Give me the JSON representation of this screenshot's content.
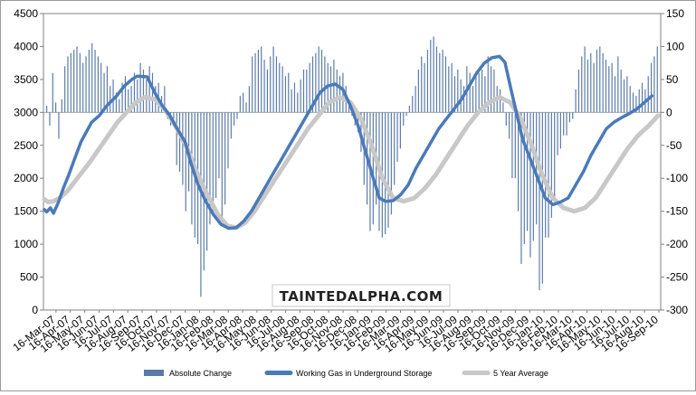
{
  "chart_data": {
    "type": "bar+line",
    "title": "",
    "xlabel": "",
    "ylabel": "",
    "y_left": {
      "min": 0,
      "max": 4500,
      "step": 500
    },
    "y_right": {
      "min": -300,
      "max": 150,
      "step": 50
    },
    "grid": false,
    "legend_position": "bottom",
    "x_tick_labels": [
      "16-Mar-07",
      "16-Apr-07",
      "16-May-07",
      "16-Jun-07",
      "16-Jul-07",
      "16-Aug-07",
      "16-Sep-07",
      "16-Oct-07",
      "16-Nov-07",
      "16-Dec-07",
      "16-Jan-08",
      "16-Feb-08",
      "16-Mar-08",
      "16-Apr-08",
      "16-May-08",
      "16-Jun-08",
      "16-Jul-08",
      "16-Aug-08",
      "16-Sep-08",
      "16-Oct-08",
      "16-Nov-08",
      "16-Dec-08",
      "16-Jan-09",
      "16-Feb-09",
      "16-Mar-09",
      "16-Apr-09",
      "16-May-09",
      "16-Jun-09",
      "16-Jul-09",
      "16-Aug-09",
      "16-Sep-09",
      "16-Oct-09",
      "16-Nov-09",
      "16-Dec-09",
      "16-Jan-10",
      "16-Feb-10",
      "16-Mar-10",
      "16-Apr-10",
      "16-May-10",
      "16-Jun-10",
      "16-Jul-10",
      "16-Aug-10",
      "16-Sep-10"
    ],
    "series": [
      {
        "name": "Absolute Change",
        "type": "bar",
        "axis": "right",
        "color": "#5a7aa8",
        "values": [
          10,
          -20,
          60,
          15,
          -40,
          20,
          70,
          85,
          90,
          95,
          100,
          90,
          75,
          85,
          95,
          105,
          95,
          85,
          75,
          60,
          70,
          40,
          50,
          30,
          20,
          45,
          55,
          35,
          40,
          60,
          50,
          75,
          65,
          50,
          70,
          60,
          40,
          45,
          25,
          40,
          -10,
          -20,
          -10,
          -80,
          -90,
          -110,
          -150,
          -120,
          -170,
          -190,
          -200,
          -280,
          -240,
          -210,
          -170,
          -150,
          -130,
          -100,
          -160,
          -140,
          -85,
          -40,
          -20,
          -10,
          25,
          30,
          15,
          40,
          85,
          90,
          95,
          100,
          80,
          65,
          85,
          100,
          85,
          75,
          70,
          55,
          60,
          35,
          45,
          30,
          50,
          65,
          65,
          75,
          85,
          90,
          100,
          95,
          85,
          75,
          70,
          80,
          65,
          55,
          60,
          40,
          20,
          -5,
          -20,
          -30,
          -60,
          -110,
          -140,
          -180,
          -170,
          -140,
          -180,
          -190,
          -185,
          -175,
          -155,
          -110,
          -75,
          -55,
          -20,
          -5,
          10,
          25,
          40,
          65,
          85,
          75,
          95,
          110,
          115,
          100,
          90,
          95,
          85,
          70,
          75,
          55,
          65,
          50,
          40,
          70,
          60,
          40,
          55,
          60,
          65,
          55,
          85,
          70,
          65,
          40,
          35,
          15,
          -20,
          -40,
          -100,
          -100,
          -150,
          -230,
          -200,
          -180,
          -220,
          -195,
          -170,
          -270,
          -260,
          -190,
          -190,
          -160,
          -130,
          -65,
          -55,
          -35,
          -35,
          -15,
          -10,
          35,
          65,
          85,
          100,
          80,
          90,
          75,
          95,
          100,
          90,
          80,
          70,
          75,
          55,
          85,
          65,
          50,
          55,
          40,
          30,
          25,
          35,
          45,
          35,
          55,
          75,
          85,
          100
        ]
      },
      {
        "name": "Working Gas in Underground Storage",
        "type": "line",
        "axis": "left",
        "color": "#4a7ab8",
        "values": [
          [
            0,
            1525
          ],
          [
            3,
            1490
          ],
          [
            8,
            1550
          ],
          [
            12,
            1470
          ],
          [
            18,
            1620
          ],
          [
            25,
            1850
          ],
          [
            32,
            2050
          ],
          [
            40,
            2300
          ],
          [
            48,
            2550
          ],
          [
            55,
            2700
          ],
          [
            62,
            2850
          ],
          [
            72,
            2950
          ],
          [
            82,
            3100
          ],
          [
            95,
            3250
          ],
          [
            105,
            3400
          ],
          [
            115,
            3500
          ],
          [
            122,
            3550
          ],
          [
            135,
            3540
          ],
          [
            145,
            3300
          ],
          [
            155,
            3100
          ],
          [
            165,
            2950
          ],
          [
            172,
            2800
          ],
          [
            185,
            2550
          ],
          [
            192,
            2250
          ],
          [
            202,
            1900
          ],
          [
            212,
            1650
          ],
          [
            222,
            1450
          ],
          [
            232,
            1300
          ],
          [
            242,
            1240
          ],
          [
            252,
            1250
          ],
          [
            262,
            1350
          ],
          [
            272,
            1500
          ],
          [
            282,
            1700
          ],
          [
            292,
            1900
          ],
          [
            302,
            2100
          ],
          [
            312,
            2300
          ],
          [
            322,
            2500
          ],
          [
            332,
            2700
          ],
          [
            342,
            2900
          ],
          [
            352,
            3100
          ],
          [
            362,
            3300
          ],
          [
            372,
            3400
          ],
          [
            382,
            3430
          ],
          [
            392,
            3350
          ],
          [
            402,
            3100
          ],
          [
            412,
            2800
          ],
          [
            422,
            2400
          ],
          [
            432,
            2000
          ],
          [
            440,
            1700
          ],
          [
            448,
            1650
          ],
          [
            458,
            1660
          ],
          [
            468,
            1750
          ],
          [
            478,
            1900
          ],
          [
            488,
            2150
          ],
          [
            498,
            2350
          ],
          [
            508,
            2550
          ],
          [
            518,
            2750
          ],
          [
            528,
            2900
          ],
          [
            538,
            3050
          ],
          [
            548,
            3200
          ],
          [
            558,
            3400
          ],
          [
            568,
            3600
          ],
          [
            578,
            3750
          ],
          [
            588,
            3830
          ],
          [
            598,
            3850
          ],
          [
            605,
            3760
          ],
          [
            612,
            3400
          ],
          [
            620,
            3000
          ],
          [
            628,
            2600
          ],
          [
            638,
            2300
          ],
          [
            648,
            2000
          ],
          [
            658,
            1700
          ],
          [
            668,
            1600
          ],
          [
            678,
            1640
          ],
          [
            688,
            1700
          ],
          [
            698,
            1900
          ],
          [
            708,
            2100
          ],
          [
            718,
            2350
          ],
          [
            728,
            2550
          ],
          [
            738,
            2750
          ],
          [
            748,
            2850
          ],
          [
            758,
            2920
          ],
          [
            768,
            2980
          ],
          [
            778,
            3050
          ],
          [
            788,
            3150
          ],
          [
            798,
            3250
          ]
        ]
      },
      {
        "name": "5 Year Average",
        "type": "line",
        "axis": "left",
        "color": "#c8c8c8",
        "values": [
          [
            0,
            1680
          ],
          [
            5,
            1640
          ],
          [
            12,
            1650
          ],
          [
            20,
            1700
          ],
          [
            30,
            1800
          ],
          [
            40,
            1950
          ],
          [
            50,
            2100
          ],
          [
            60,
            2250
          ],
          [
            72,
            2450
          ],
          [
            84,
            2650
          ],
          [
            96,
            2850
          ],
          [
            108,
            3000
          ],
          [
            120,
            3150
          ],
          [
            132,
            3230
          ],
          [
            145,
            3200
          ],
          [
            158,
            3050
          ],
          [
            172,
            2800
          ],
          [
            186,
            2500
          ],
          [
            200,
            2100
          ],
          [
            214,
            1750
          ],
          [
            228,
            1450
          ],
          [
            240,
            1280
          ],
          [
            252,
            1250
          ],
          [
            264,
            1330
          ],
          [
            276,
            1500
          ],
          [
            290,
            1750
          ],
          [
            304,
            2000
          ],
          [
            318,
            2250
          ],
          [
            332,
            2500
          ],
          [
            346,
            2750
          ],
          [
            360,
            2950
          ],
          [
            374,
            3150
          ],
          [
            388,
            3230
          ],
          [
            402,
            3150
          ],
          [
            416,
            2900
          ],
          [
            430,
            2500
          ],
          [
            444,
            2000
          ],
          [
            458,
            1700
          ],
          [
            472,
            1650
          ],
          [
            486,
            1700
          ],
          [
            500,
            1850
          ],
          [
            514,
            2050
          ],
          [
            528,
            2300
          ],
          [
            542,
            2550
          ],
          [
            556,
            2800
          ],
          [
            570,
            3000
          ],
          [
            584,
            3150
          ],
          [
            598,
            3230
          ],
          [
            612,
            3150
          ],
          [
            626,
            2900
          ],
          [
            640,
            2500
          ],
          [
            654,
            2050
          ],
          [
            668,
            1700
          ],
          [
            682,
            1550
          ],
          [
            696,
            1500
          ],
          [
            710,
            1550
          ],
          [
            724,
            1700
          ],
          [
            738,
            1950
          ],
          [
            752,
            2200
          ],
          [
            766,
            2450
          ],
          [
            780,
            2650
          ],
          [
            794,
            2800
          ],
          [
            806,
            2950
          ]
        ]
      }
    ]
  },
  "legend": [
    {
      "label": "Absolute Change",
      "swatch": "bar",
      "color": "#5a7aa8"
    },
    {
      "label": "Working Gas in Underground Storage",
      "swatch": "line",
      "color": "#4a7ab8"
    },
    {
      "label": "5 Year Average",
      "swatch": "line",
      "color": "#c8c8c8"
    }
  ],
  "watermark": {
    "text": "TaintedAlpha.com"
  }
}
